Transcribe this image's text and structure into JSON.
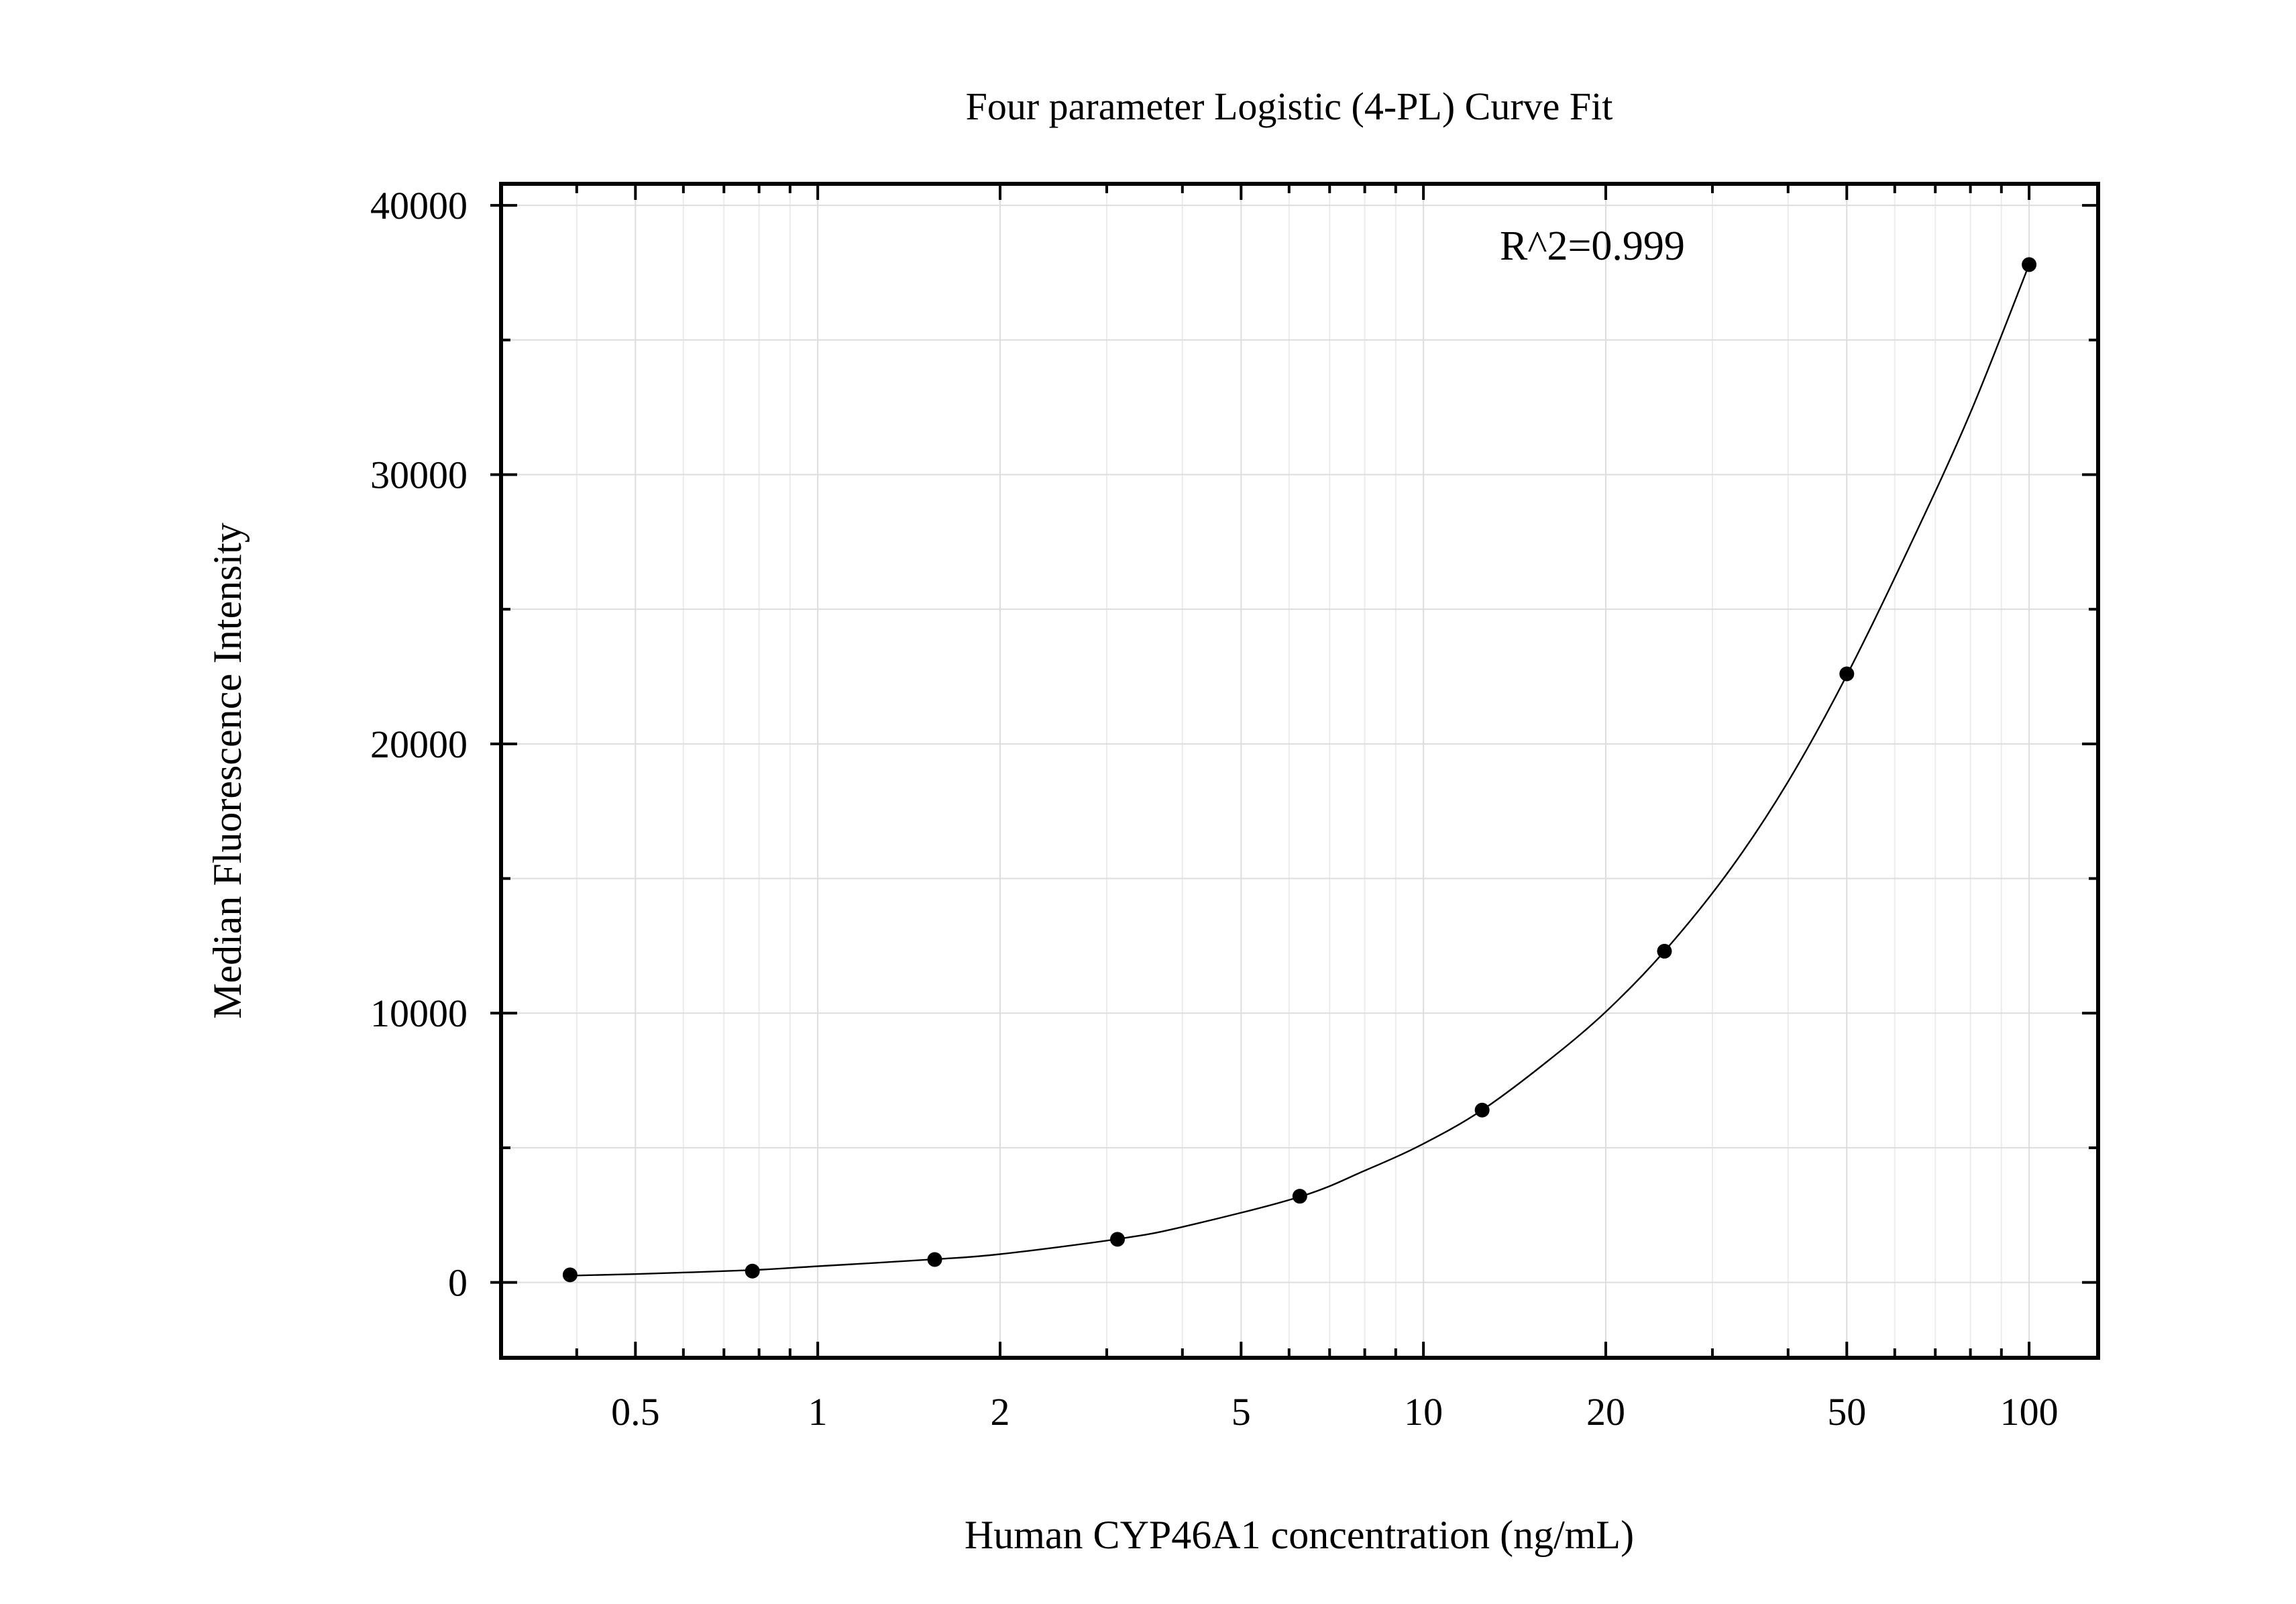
{
  "chart_data": {
    "type": "scatter",
    "title": "Four parameter Logistic (4-PL) Curve Fit",
    "xlabel": "Human CYP46A1 concentration (ng/mL)",
    "ylabel": "Median Fluorescence Intensity",
    "x_scale": "log",
    "xlim": [
      0.3,
      130
    ],
    "ylim": [
      -2800,
      40800
    ],
    "x_ticks": [
      0.5,
      1,
      2,
      5,
      10,
      20,
      50,
      100
    ],
    "x_tick_labels": [
      "0.5",
      "1",
      "2",
      "5",
      "10",
      "20",
      "50",
      "100"
    ],
    "y_ticks": [
      0,
      10000,
      20000,
      30000,
      40000
    ],
    "y_tick_labels": [
      "0",
      "10000",
      "20000",
      "30000",
      "40000"
    ],
    "grid": true,
    "annotation": "R^2=0.999",
    "series": [
      {
        "x": [
          0.39,
          0.78,
          1.56,
          3.125,
          6.25,
          12.5,
          25,
          50,
          100
        ],
        "y": [
          280,
          420,
          850,
          1600,
          3200,
          6400,
          12300,
          22600,
          37800
        ]
      }
    ],
    "fit_curve": {
      "x": [
        0.39,
        0.5,
        0.78,
        1.0,
        1.56,
        2.0,
        3.125,
        4.0,
        6.25,
        8.0,
        10.0,
        12.5,
        16.0,
        20.0,
        25.0,
        32.0,
        40.0,
        50.0,
        64.0,
        80.0,
        100.0
      ],
      "y": [
        250,
        310,
        460,
        600,
        860,
        1050,
        1610,
        2060,
        3180,
        4150,
        5150,
        6400,
        8200,
        10050,
        12300,
        15300,
        18600,
        22550,
        27500,
        32300,
        37800
      ]
    }
  }
}
